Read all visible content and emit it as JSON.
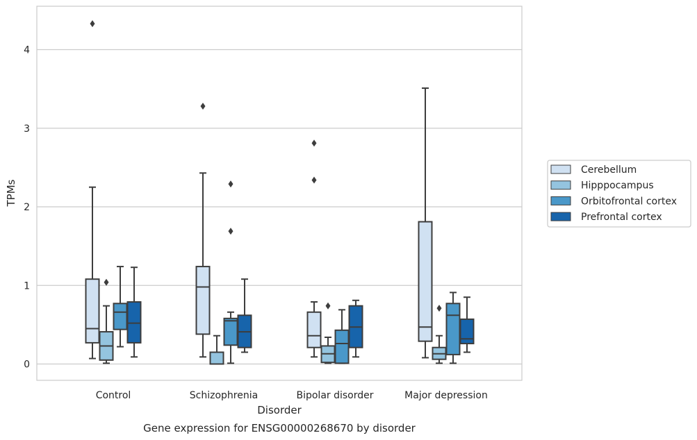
{
  "chart_data": {
    "type": "box",
    "title": "",
    "caption": "Gene expression for ENSG00000268670 by disorder",
    "xlabel": "Disorder",
    "ylabel": "TPMs",
    "ylim": [
      -0.2,
      4.55
    ],
    "yticks": [
      0,
      1,
      2,
      3,
      4
    ],
    "grid": "horizontal",
    "legend_position": "right",
    "categories": [
      "Control",
      "Schizophrenia",
      "Bipolar disorder",
      "Major depression"
    ],
    "series": [
      {
        "name": "Cerebellum",
        "color": "#d0e1f2",
        "boxes": [
          {
            "whislo": 0.07,
            "q1": 0.27,
            "med": 0.45,
            "q3": 1.08,
            "whishi": 2.25,
            "fliers": [
              4.33
            ]
          },
          {
            "whislo": 0.09,
            "q1": 0.38,
            "med": 0.98,
            "q3": 1.24,
            "whishi": 2.43,
            "fliers": [
              3.28
            ]
          },
          {
            "whislo": 0.09,
            "q1": 0.21,
            "med": 0.36,
            "q3": 0.66,
            "whishi": 0.79,
            "fliers": [
              2.34,
              2.81
            ]
          },
          {
            "whislo": 0.08,
            "q1": 0.29,
            "med": 0.47,
            "q3": 1.81,
            "whishi": 3.51,
            "fliers": []
          }
        ]
      },
      {
        "name": "Hipppocampus",
        "color": "#94c4df",
        "boxes": [
          {
            "whislo": 0.01,
            "q1": 0.05,
            "med": 0.23,
            "q3": 0.41,
            "whishi": 0.74,
            "fliers": [
              1.04
            ]
          },
          {
            "whislo": 0.0,
            "q1": 0.0,
            "med": 0.0,
            "q3": 0.15,
            "whishi": 0.36,
            "fliers": []
          },
          {
            "whislo": 0.01,
            "q1": 0.02,
            "med": 0.13,
            "q3": 0.23,
            "whishi": 0.34,
            "fliers": [
              0.74
            ]
          },
          {
            "whislo": 0.01,
            "q1": 0.06,
            "med": 0.13,
            "q3": 0.21,
            "whishi": 0.36,
            "fliers": [
              0.71
            ]
          }
        ]
      },
      {
        "name": "Orbitofrontal cortex",
        "color": "#4a98c9",
        "boxes": [
          {
            "whislo": 0.22,
            "q1": 0.44,
            "med": 0.66,
            "q3": 0.77,
            "whishi": 1.24,
            "fliers": []
          },
          {
            "whislo": 0.01,
            "q1": 0.24,
            "med": 0.55,
            "q3": 0.58,
            "whishi": 0.66,
            "fliers": [
              1.69,
              2.29
            ]
          },
          {
            "whislo": 0.01,
            "q1": 0.01,
            "med": 0.26,
            "q3": 0.43,
            "whishi": 0.69,
            "fliers": []
          },
          {
            "whislo": 0.01,
            "q1": 0.12,
            "med": 0.62,
            "q3": 0.77,
            "whishi": 0.91,
            "fliers": []
          }
        ]
      },
      {
        "name": "Prefrontal cortex",
        "color": "#1764ab",
        "boxes": [
          {
            "whislo": 0.09,
            "q1": 0.27,
            "med": 0.52,
            "q3": 0.79,
            "whishi": 1.23,
            "fliers": []
          },
          {
            "whislo": 0.15,
            "q1": 0.21,
            "med": 0.41,
            "q3": 0.62,
            "whishi": 1.08,
            "fliers": []
          },
          {
            "whislo": 0.09,
            "q1": 0.21,
            "med": 0.47,
            "q3": 0.74,
            "whishi": 0.81,
            "fliers": []
          },
          {
            "whislo": 0.15,
            "q1": 0.26,
            "med": 0.32,
            "q3": 0.57,
            "whishi": 0.85,
            "fliers": []
          }
        ]
      }
    ]
  }
}
